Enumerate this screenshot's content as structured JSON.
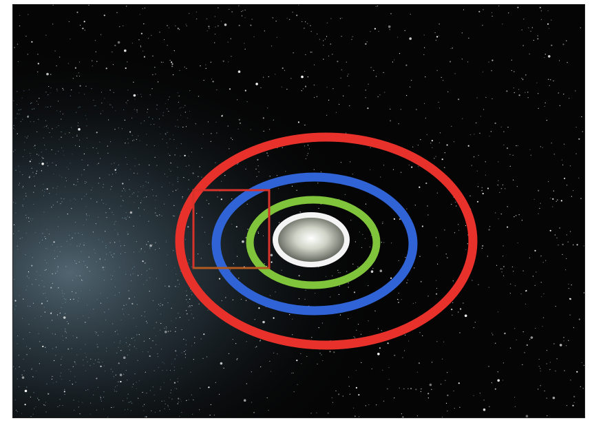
{
  "image": {
    "background_color": "#050505",
    "milky_way_color": "#8fb3c8",
    "star_color": "#ffffff",
    "core_glow_color": "#d9ddd3"
  },
  "rings": [
    {
      "name": "outer-ring",
      "color": "#e8312a"
    },
    {
      "name": "middle-ring",
      "color": "#2f63d6"
    },
    {
      "name": "inner-ring",
      "color": "#7fc43a"
    },
    {
      "name": "core-ring",
      "color": "#f4f4f4"
    }
  ],
  "highlight_box": {
    "color": "#d8322a",
    "accent_color": "#b25a20"
  }
}
